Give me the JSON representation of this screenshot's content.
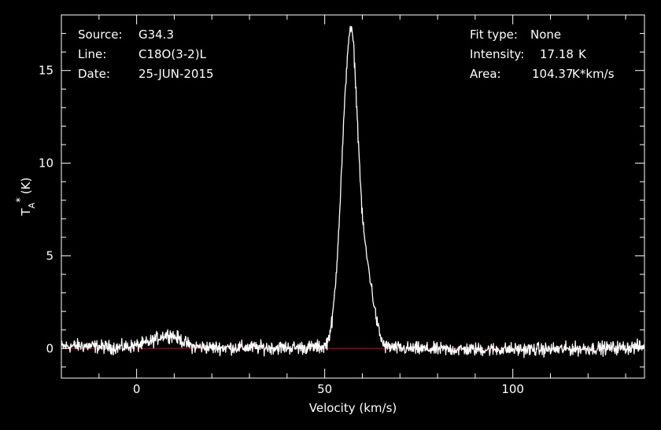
{
  "header": {
    "source_label": "Source:",
    "source_value": "G34.3",
    "line_label": "Line:",
    "line_value": "C18O(3-2)L",
    "date_label": "Date:",
    "date_value": "25-JUN-2015",
    "fit_label": "Fit type:",
    "fit_value": "None",
    "intensity_label": "Intensity:",
    "intensity_value": "17.18",
    "intensity_unit": "K",
    "area_label": "Area:",
    "area_value": "104.37",
    "area_unit": "K*km/s"
  },
  "chart_data": {
    "type": "line",
    "xlabel": "Velocity (km/s)",
    "ylabel": "T",
    "ylabel_sub": "A",
    "ylabel_sup": "*",
    "ylabel_unit": "(K)",
    "xlim": [
      -20,
      135
    ],
    "ylim": [
      -1.6,
      18
    ],
    "x_ticks": [
      0,
      50,
      100
    ],
    "x_tick_labels": [
      "0",
      "50",
      "100"
    ],
    "y_ticks": [
      0,
      5,
      10,
      15
    ],
    "y_tick_labels": [
      "0",
      "5",
      "10",
      "15"
    ],
    "baseline": 0,
    "colors": {
      "spectrum": "#ffffff",
      "baseline": "#cc0000",
      "frame": "#ffffff",
      "background": "#000000"
    },
    "series": [
      {
        "x": [
          -20,
          -15,
          -10,
          -5,
          0,
          3,
          5,
          7,
          9,
          11,
          13,
          15,
          20,
          30,
          40,
          45,
          50,
          51,
          52,
          53,
          54,
          55,
          56,
          56.5,
          57,
          57.5,
          58,
          59,
          60,
          60.5,
          61,
          62,
          63,
          64,
          65,
          66,
          70,
          80,
          90,
          100,
          110,
          120,
          130,
          135
        ],
        "y": [
          0.1,
          0.15,
          0.1,
          0.05,
          0.15,
          0.3,
          0.5,
          0.7,
          0.75,
          0.55,
          0.3,
          0.1,
          0.05,
          0.05,
          0.05,
          0.05,
          0.1,
          0.5,
          1.5,
          3.8,
          7.5,
          12.0,
          15.8,
          17.0,
          17.18,
          16.8,
          15.2,
          11.0,
          7.0,
          6.2,
          5.2,
          3.9,
          2.5,
          1.3,
          0.5,
          0.1,
          0.0,
          -0.05,
          -0.05,
          -0.05,
          -0.05,
          0.0,
          0.05,
          0.1
        ]
      }
    ]
  }
}
